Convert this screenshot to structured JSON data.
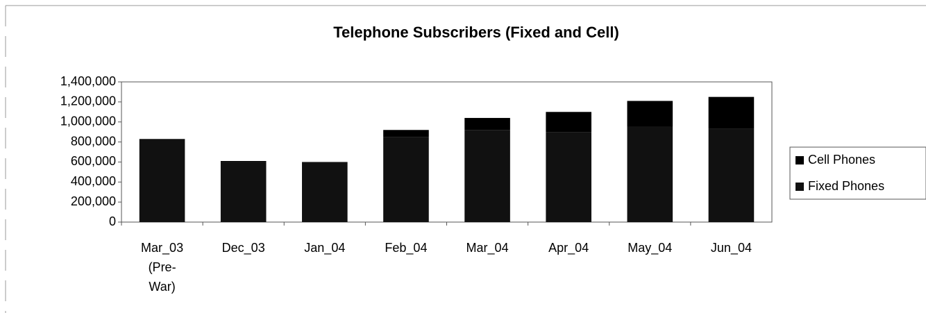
{
  "chart_data": {
    "type": "stacked_bar",
    "title": "Telephone Subscribers (Fixed and Cell)",
    "categories": [
      "Mar_03 (Pre-War)",
      "Dec_03",
      "Jan_04",
      "Feb_04",
      "Mar_04",
      "Apr_04",
      "May_04",
      "Jun_04"
    ],
    "series": [
      {
        "name": "Cell Phones",
        "color": "#000000",
        "values": [
          0,
          10000,
          10000,
          70000,
          120000,
          200000,
          260000,
          320000
        ]
      },
      {
        "name": "Fixed Phones",
        "color": "#111111",
        "values": [
          830000,
          600000,
          590000,
          850000,
          920000,
          900000,
          950000,
          930000
        ]
      }
    ],
    "ylim": [
      0,
      1400000
    ],
    "yticks": [
      0,
      {
        "value": 200000,
        "label": "200,000"
      },
      {
        "value": 400000,
        "label": "400,000"
      },
      {
        "value": 600000,
        "label": "600,000"
      },
      {
        "value": 800000,
        "label": "800,000"
      },
      {
        "value": 1000000,
        "label": "1,000,000"
      },
      {
        "value": 1200000,
        "label": "1,200,000"
      },
      {
        "value": 1400000,
        "label": "1,400,000"
      }
    ],
    "legend": "right"
  }
}
